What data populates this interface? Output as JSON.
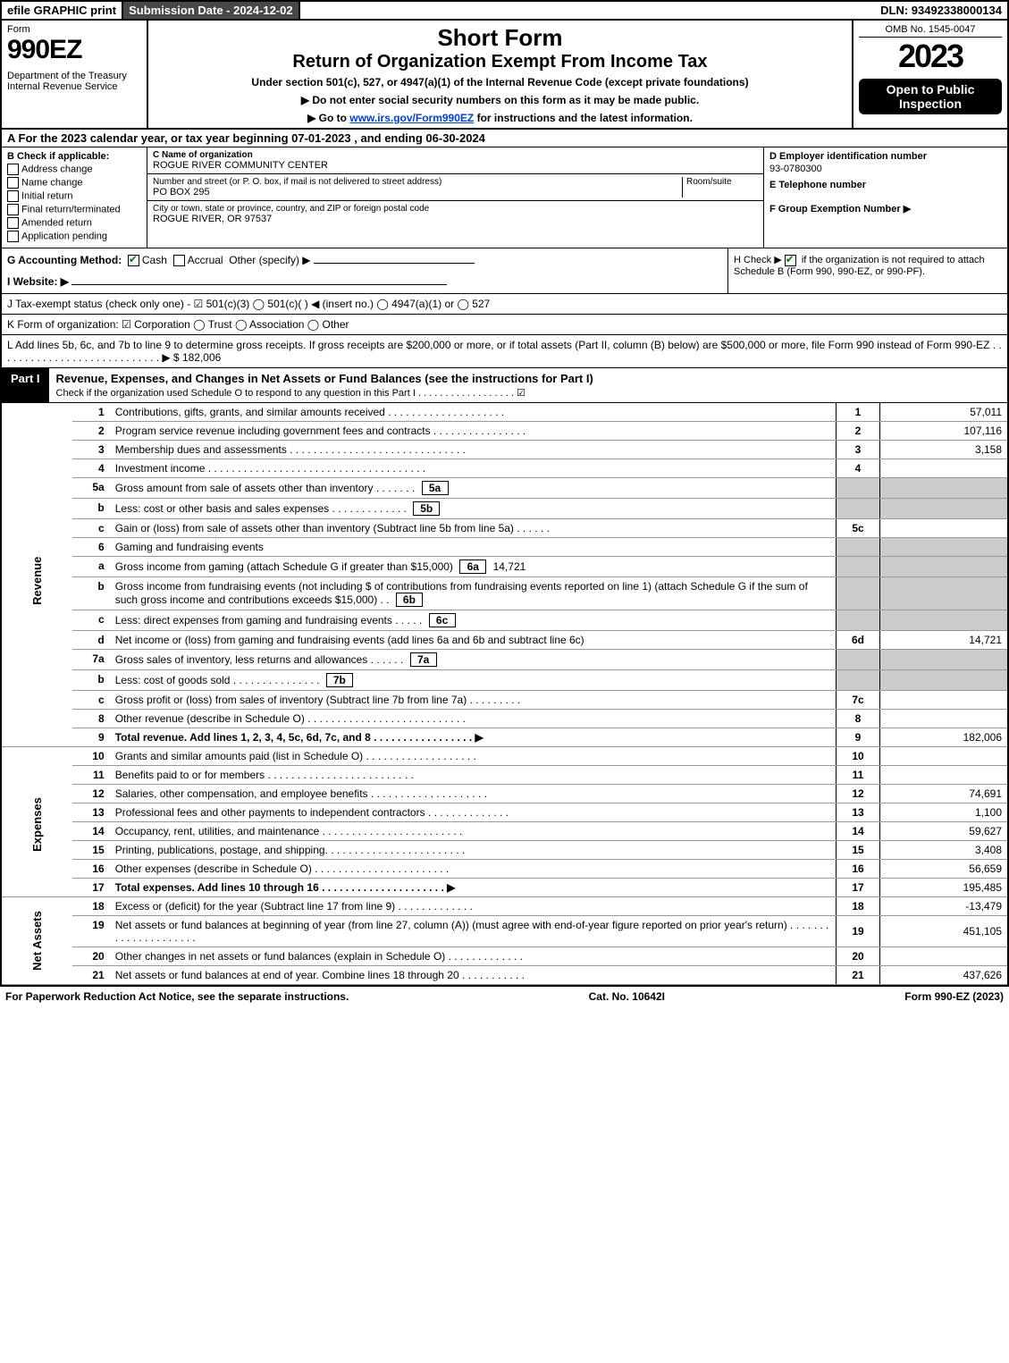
{
  "topbar": {
    "efile": "efile GRAPHIC print",
    "subdate": "Submission Date - 2024-12-02",
    "dln": "DLN: 93492338000134"
  },
  "header": {
    "form": "Form",
    "num": "990EZ",
    "dept": "Department of the Treasury\nInternal Revenue Service",
    "title1": "Short Form",
    "title2": "Return of Organization Exempt From Income Tax",
    "sub": "Under section 501(c), 527, or 4947(a)(1) of the Internal Revenue Code (except private foundations)",
    "inst1": "▶ Do not enter social security numbers on this form as it may be made public.",
    "inst2": "▶ Go to www.irs.gov/Form990EZ for instructions and the latest information.",
    "link": "www.irs.gov/Form990EZ",
    "omb": "OMB No. 1545-0047",
    "year": "2023",
    "open": "Open to Public Inspection"
  },
  "A": "A  For the 2023 calendar year, or tax year beginning 07-01-2023 , and ending 06-30-2024",
  "B": {
    "title": "B  Check if applicable:",
    "opts": [
      "Address change",
      "Name change",
      "Initial return",
      "Final return/terminated",
      "Amended return",
      "Application pending"
    ]
  },
  "C": {
    "nameLabel": "C Name of organization",
    "name": "ROGUE RIVER COMMUNITY CENTER",
    "streetLabel": "Number and street (or P. O. box, if mail is not delivered to street address)",
    "roomLabel": "Room/suite",
    "street": "PO BOX 295",
    "cityLabel": "City or town, state or province, country, and ZIP or foreign postal code",
    "city": "ROGUE RIVER, OR  97537"
  },
  "D": {
    "label": "D Employer identification number",
    "ein": "93-0780300"
  },
  "E": {
    "label": "E Telephone number"
  },
  "F": {
    "label": "F Group Exemption Number  ▶"
  },
  "G": {
    "label": "G Accounting Method:",
    "cash": "Cash",
    "accrual": "Accrual",
    "other": "Other (specify) ▶"
  },
  "H": {
    "text": "H  Check ▶ ",
    "chk": "if the organization is not required to attach Schedule B (Form 990, 990-EZ, or 990-PF)."
  },
  "I": "I Website: ▶",
  "J": "J Tax-exempt status (check only one) -  ☑ 501(c)(3)  ◯ 501(c)(  ) ◀ (insert no.)  ◯ 4947(a)(1) or  ◯ 527",
  "K": "K Form of organization:   ☑ Corporation   ◯ Trust   ◯ Association   ◯ Other",
  "L": {
    "text": "L Add lines 5b, 6c, and 7b to line 9 to determine gross receipts. If gross receipts are $200,000 or more, or if total assets (Part II, column (B) below) are $500,000 or more, file Form 990 instead of Form 990-EZ  .  .  .  .  .  .  .  .  .  .  .  .  .  .  .  .  .  .  .  .  .  .  .  .  .  .  .  .  ▶ $ ",
    "val": "182,006"
  },
  "PartI": {
    "label": "Part I",
    "desc": "Revenue, Expenses, and Changes in Net Assets or Fund Balances (see the instructions for Part I)",
    "sub": "Check if the organization used Schedule O to respond to any question in this Part I .  .  .  .  .  .  .  .  .  .  .  .  .  .  .  .  .  .  ☑"
  },
  "sections": {
    "revenue": "Revenue",
    "expenses": "Expenses",
    "net": "Net Assets"
  },
  "lines": [
    {
      "n": "1",
      "t": "Contributions, gifts, grants, and similar amounts received  .  .  .  .  .  .  .  .  .  .  .  .  .  .  .  .  .  .  .  .",
      "box": "1",
      "v": "57,011"
    },
    {
      "n": "2",
      "t": "Program service revenue including government fees and contracts  .  .  .  .  .  .  .  .  .  .  .  .  .  .  .  .",
      "box": "2",
      "v": "107,116"
    },
    {
      "n": "3",
      "t": "Membership dues and assessments  .  .  .  .  .  .  .  .  .  .  .  .  .  .  .  .  .  .  .  .  .  .  .  .  .  .  .  .  .  .",
      "box": "3",
      "v": "3,158"
    },
    {
      "n": "4",
      "t": "Investment income  .  .  .  .  .  .  .  .  .  .  .  .  .  .  .  .  .  .  .  .  .  .  .  .  .  .  .  .  .  .  .  .  .  .  .  .  .",
      "box": "4",
      "v": ""
    },
    {
      "n": "5a",
      "t": "Gross amount from sale of assets other than inventory  .  .  .  .  .  .  .",
      "sub": "5a",
      "subv": "",
      "shade": true
    },
    {
      "n": "b",
      "t": "Less: cost or other basis and sales expenses  .  .  .  .  .  .  .  .  .  .  .  .  .",
      "sub": "5b",
      "subv": "",
      "shade": true
    },
    {
      "n": "c",
      "t": "Gain or (loss) from sale of assets other than inventory (Subtract line 5b from line 5a)  .  .  .  .  .  .",
      "box": "5c",
      "v": ""
    },
    {
      "n": "6",
      "t": "Gaming and fundraising events",
      "shade": true
    },
    {
      "n": "a",
      "t": "Gross income from gaming (attach Schedule G if greater than $15,000)",
      "sub": "6a",
      "subv": "14,721",
      "shade": true
    },
    {
      "n": "b",
      "t": "Gross income from fundraising events (not including $                       of contributions from fundraising events reported on line 1) (attach Schedule G if the sum of such gross income and contributions exceeds $15,000)    .  .",
      "sub": "6b",
      "subv": "",
      "shade": true
    },
    {
      "n": "c",
      "t": "Less: direct expenses from gaming and fundraising events   .  .  .  .  .",
      "sub": "6c",
      "subv": "",
      "shade": true
    },
    {
      "n": "d",
      "t": "Net income or (loss) from gaming and fundraising events (add lines 6a and 6b and subtract line 6c)",
      "box": "6d",
      "v": "14,721"
    },
    {
      "n": "7a",
      "t": "Gross sales of inventory, less returns and allowances  .  .  .  .  .  .",
      "sub": "7a",
      "subv": "",
      "shade": true
    },
    {
      "n": "b",
      "t": "Less: cost of goods sold           .  .  .  .  .  .  .  .  .  .  .  .  .  .  .",
      "sub": "7b",
      "subv": "",
      "shade": true
    },
    {
      "n": "c",
      "t": "Gross profit or (loss) from sales of inventory (Subtract line 7b from line 7a)  .  .  .  .  .  .  .  .  .",
      "box": "7c",
      "v": ""
    },
    {
      "n": "8",
      "t": "Other revenue (describe in Schedule O)  .  .  .  .  .  .  .  .  .  .  .  .  .  .  .  .  .  .  .  .  .  .  .  .  .  .  .",
      "box": "8",
      "v": ""
    },
    {
      "n": "9",
      "t": "Total revenue. Add lines 1, 2, 3, 4, 5c, 6d, 7c, and 8   .  .  .  .  .  .  .  .  .  .  .  .  .  .  .  .  .  ▶",
      "box": "9",
      "v": "182,006",
      "bold": true
    },
    {
      "n": "10",
      "t": "Grants and similar amounts paid (list in Schedule O)  .  .  .  .  .  .  .  .  .  .  .  .  .  .  .  .  .  .  .",
      "box": "10",
      "v": "",
      "sec": "exp"
    },
    {
      "n": "11",
      "t": "Benefits paid to or for members         .  .  .  .  .  .  .  .  .  .  .  .  .  .  .  .  .  .  .  .  .  .  .  .  .",
      "box": "11",
      "v": ""
    },
    {
      "n": "12",
      "t": "Salaries, other compensation, and employee benefits  .  .  .  .  .  .  .  .  .  .  .  .  .  .  .  .  .  .  .  .",
      "box": "12",
      "v": "74,691"
    },
    {
      "n": "13",
      "t": "Professional fees and other payments to independent contractors  .  .  .  .  .  .  .  .  .  .  .  .  .  .",
      "box": "13",
      "v": "1,100"
    },
    {
      "n": "14",
      "t": "Occupancy, rent, utilities, and maintenance .  .  .  .  .  .  .  .  .  .  .  .  .  .  .  .  .  .  .  .  .  .  .  .",
      "box": "14",
      "v": "59,627"
    },
    {
      "n": "15",
      "t": "Printing, publications, postage, and shipping.  .  .  .  .  .  .  .  .  .  .  .  .  .  .  .  .  .  .  .  .  .  .  .",
      "box": "15",
      "v": "3,408"
    },
    {
      "n": "16",
      "t": "Other expenses (describe in Schedule O)      .  .  .  .  .  .  .  .  .  .  .  .  .  .  .  .  .  .  .  .  .  .  .",
      "box": "16",
      "v": "56,659"
    },
    {
      "n": "17",
      "t": "Total expenses. Add lines 10 through 16      .  .  .  .  .  .  .  .  .  .  .  .  .  .  .  .  .  .  .  .  .  ▶",
      "box": "17",
      "v": "195,485",
      "bold": true
    },
    {
      "n": "18",
      "t": "Excess or (deficit) for the year (Subtract line 17 from line 9)       .  .  .  .  .  .  .  .  .  .  .  .  .",
      "box": "18",
      "v": "-13,479",
      "sec": "net"
    },
    {
      "n": "19",
      "t": "Net assets or fund balances at beginning of year (from line 27, column (A)) (must agree with end-of-year figure reported on prior year's return) .  .  .  .  .  .  .  .  .  .  .  .  .  .  .  .  .  .  .  .  .",
      "box": "19",
      "v": "451,105"
    },
    {
      "n": "20",
      "t": "Other changes in net assets or fund balances (explain in Schedule O) .  .  .  .  .  .  .  .  .  .  .  .  .",
      "box": "20",
      "v": ""
    },
    {
      "n": "21",
      "t": "Net assets or fund balances at end of year. Combine lines 18 through 20 .  .  .  .  .  .  .  .  .  .  .",
      "box": "21",
      "v": "437,626"
    }
  ],
  "footer": {
    "left": "For Paperwork Reduction Act Notice, see the separate instructions.",
    "mid": "Cat. No. 10642I",
    "right": "Form 990-EZ (2023)"
  }
}
